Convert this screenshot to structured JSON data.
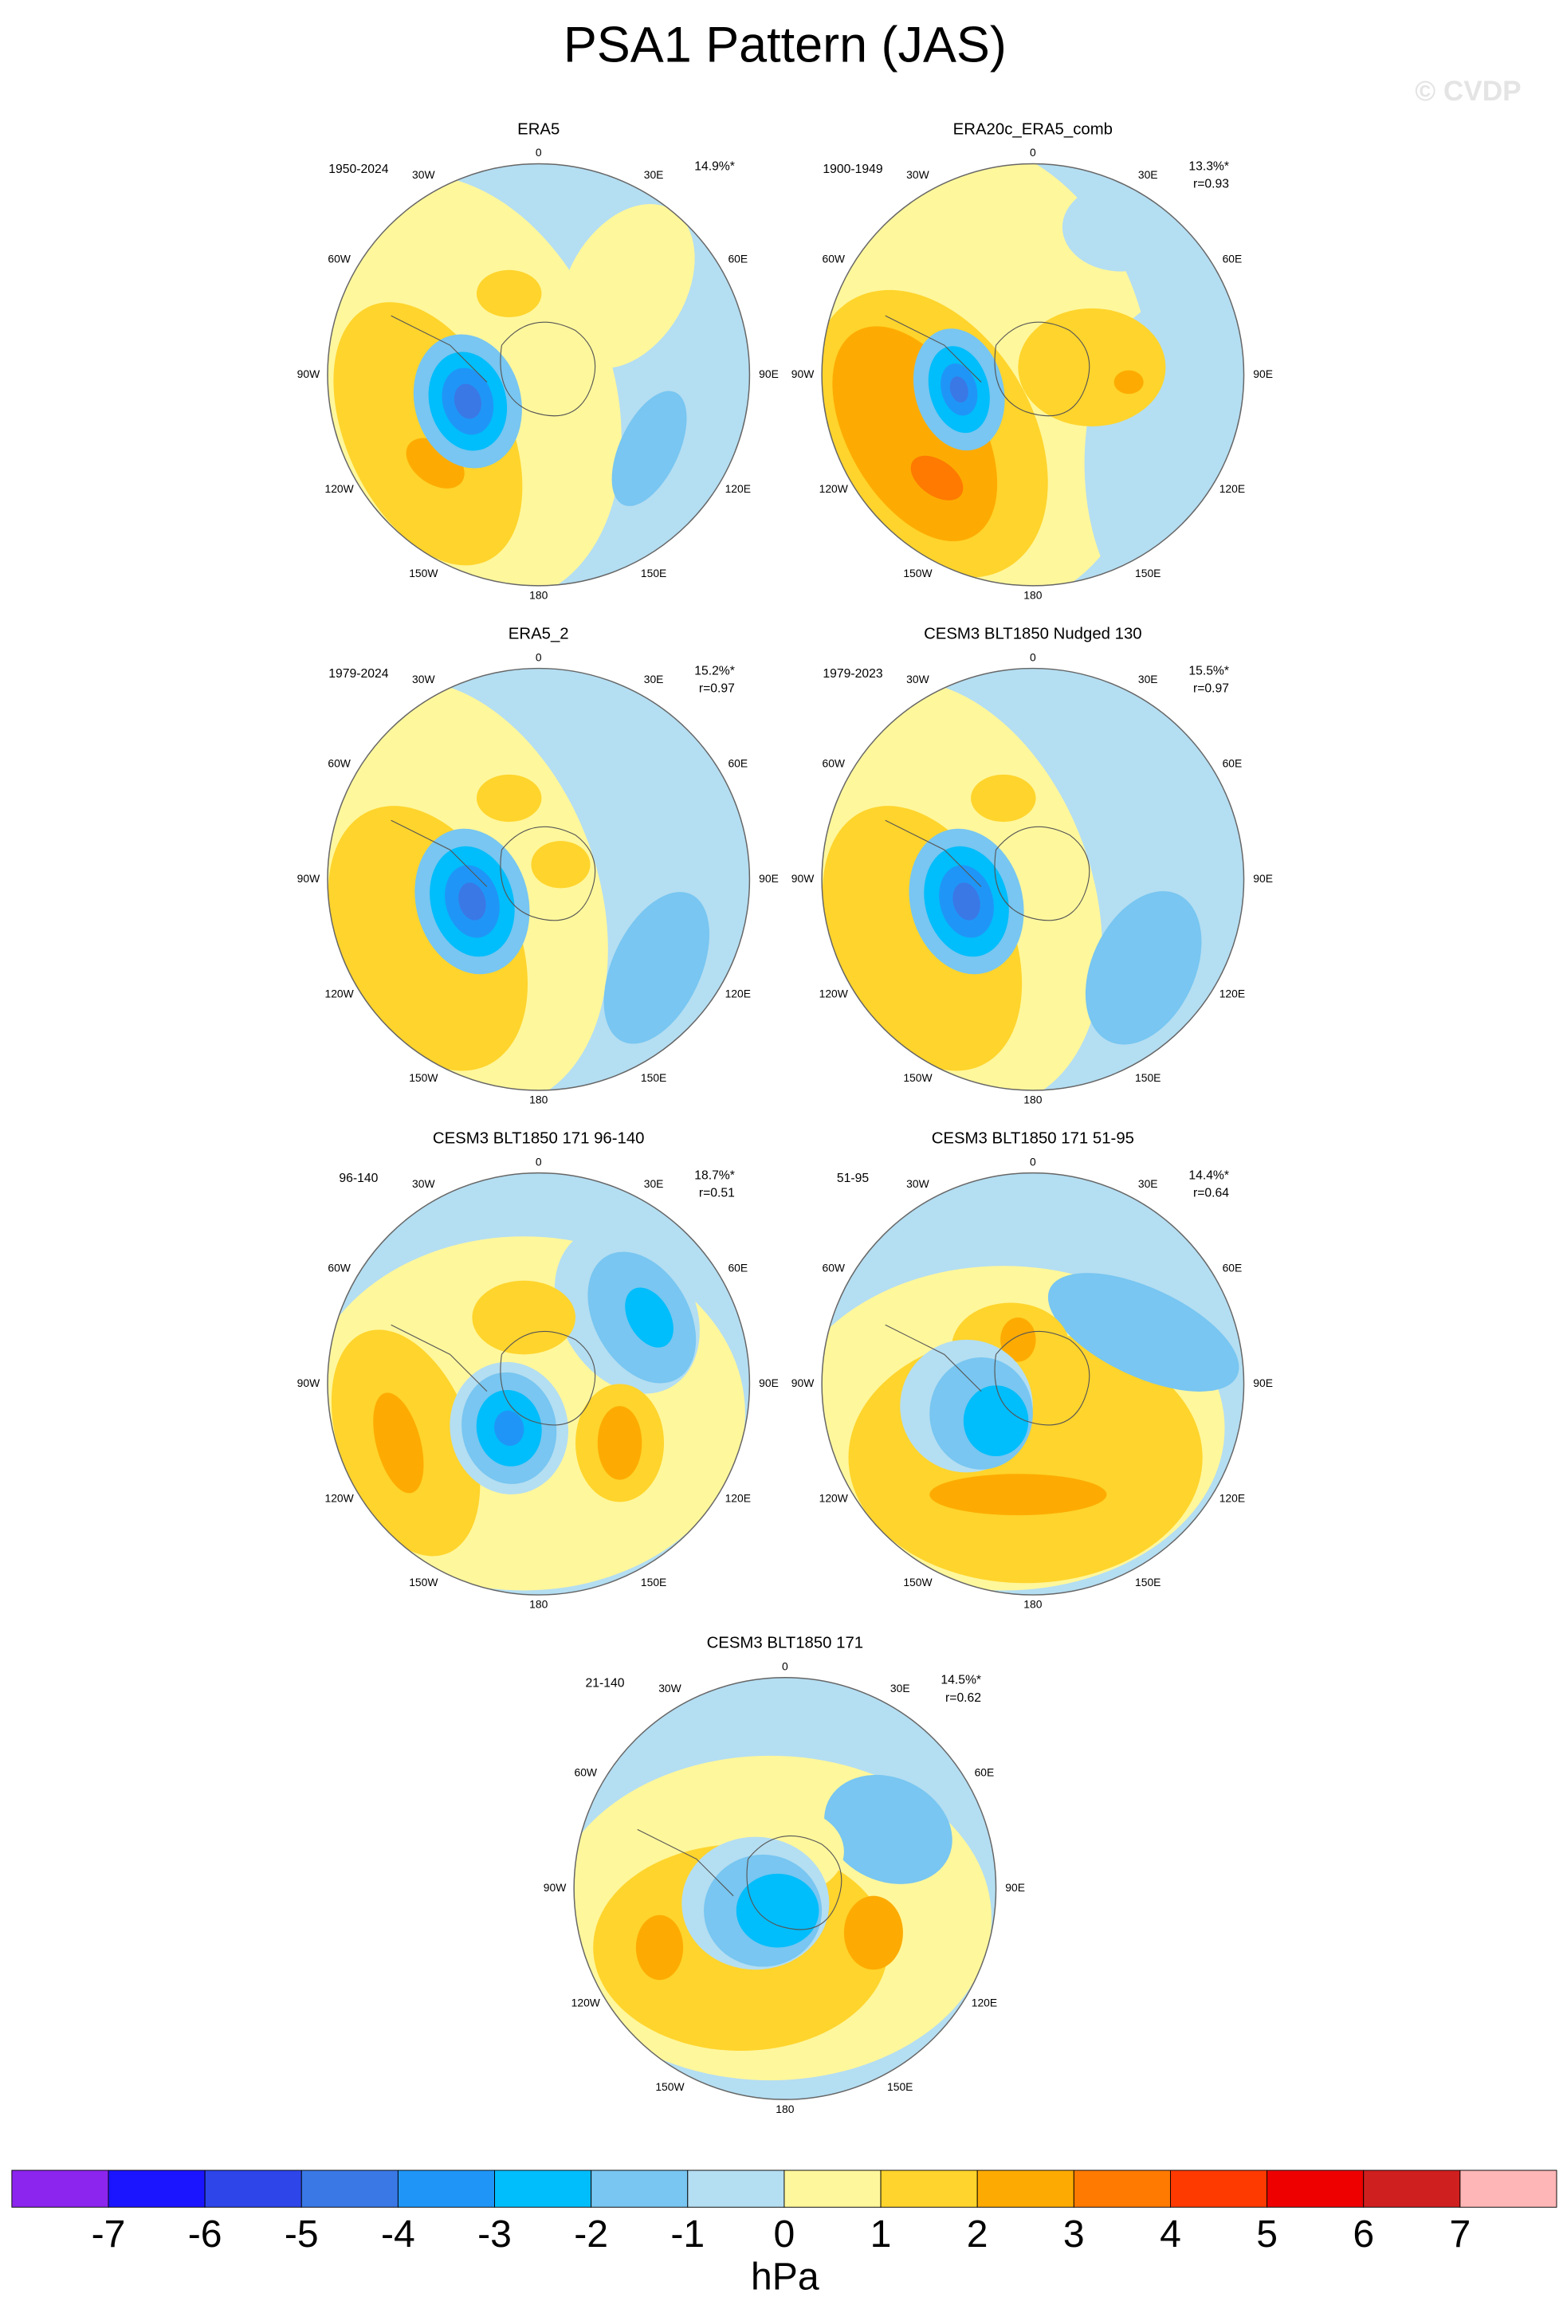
{
  "title": "PSA1 Pattern (JAS)",
  "watermark": "© CVDP",
  "longitude_labels": [
    "0",
    "30E",
    "60E",
    "90E",
    "120E",
    "150E",
    "180",
    "150W",
    "120W",
    "90W",
    "60W",
    "30W"
  ],
  "panels": [
    {
      "title": "ERA5",
      "period": "1950-2024",
      "variance": "14.9%*"
    },
    {
      "title": "ERA20c_ERA5_comb",
      "period": "1900-1949",
      "variance": "13.3%*",
      "r": "r=0.93"
    },
    {
      "title": "ERA5_2",
      "period": "1979-2024",
      "variance": "15.2%*",
      "r": "r=0.97"
    },
    {
      "title": "CESM3 BLT1850 Nudged 130",
      "period": "1979-2023",
      "variance": "15.5%*",
      "r": "r=0.97"
    },
    {
      "title": "CESM3 BLT1850 171 96-140",
      "period": "96-140",
      "variance": "18.7%*",
      "r": "r=0.51"
    },
    {
      "title": "CESM3 BLT1850 171 51-95",
      "period": "51-95",
      "variance": "14.4%*",
      "r": "r=0.64"
    },
    {
      "title": "CESM3 BLT1850 171",
      "period": "21-140",
      "variance": "14.5%*",
      "r": "r=0.62"
    }
  ],
  "colorbar": {
    "colors": [
      "#8c25ee",
      "#1a14ff",
      "#2e45ea",
      "#3a78e6",
      "#1f96f7",
      "#00bdfb",
      "#78c6f1",
      "#b4def2",
      "#fff79c",
      "#ffd42c",
      "#fdab02",
      "#ff7a00",
      "#ff3a00",
      "#ee0000",
      "#d01f1f",
      "#ffb6b6"
    ],
    "ticks": [
      -7,
      -6,
      -5,
      -4,
      -3,
      -2,
      -1,
      0,
      1,
      2,
      3,
      4,
      5,
      6,
      7
    ],
    "label": "hPa"
  }
}
